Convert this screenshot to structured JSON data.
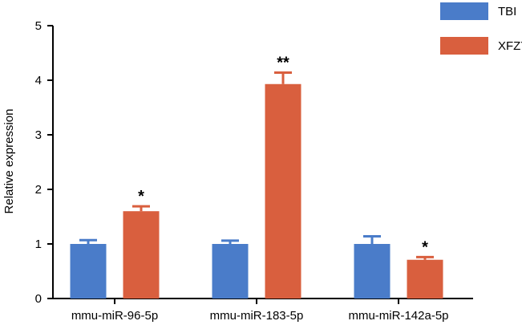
{
  "chart_data": {
    "type": "bar",
    "title": "",
    "xlabel": "",
    "ylabel": "Relative expression",
    "ylim": [
      0,
      5
    ],
    "yticks": [
      "0",
      "1",
      "2",
      "3",
      "4",
      "5"
    ],
    "grid": false,
    "legend_position": "top-right",
    "categories": [
      "mmu-miR-96-5p",
      "mmu-miR-183-5p",
      "mmu-miR-142a-5p"
    ],
    "series": [
      {
        "name": "TBI",
        "color": "#4a7cc9",
        "values": [
          1.0,
          1.0,
          1.0
        ],
        "errors": [
          0.07,
          0.06,
          0.14
        ],
        "significance": [
          "",
          "",
          ""
        ]
      },
      {
        "name": "XFZYD",
        "color": "#d95f3e",
        "values": [
          1.6,
          3.93,
          0.71
        ],
        "errors": [
          0.09,
          0.21,
          0.05
        ],
        "significance": [
          "*",
          "**",
          "*"
        ]
      }
    ]
  }
}
